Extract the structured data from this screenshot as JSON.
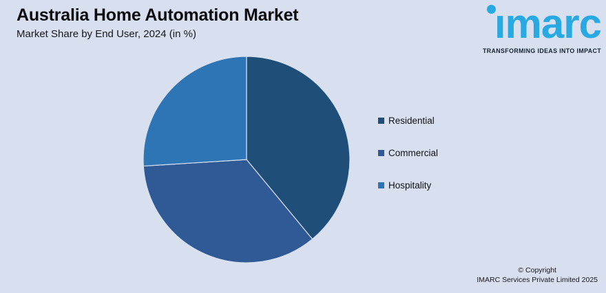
{
  "page": {
    "background": "#d8e0ef",
    "accent": "#29a9e2"
  },
  "header": {
    "title": "Australia Home Automation Market",
    "subtitle": "Market Share by End User, 2024 (in %)"
  },
  "brand": {
    "name": "imarc",
    "wordmark": "ımarc",
    "tagline": "TRANSFORMING IDEAS INTO IMPACT",
    "wordmark_color": "#29a9e2",
    "tagline_color": "#15202e"
  },
  "chart_data": {
    "type": "pie",
    "title": "Australia Home Automation Market",
    "subtitle": "Market Share by End User, 2024 (in %)",
    "unit": "%",
    "start_angle_deg": 0,
    "direction": "clockwise",
    "data_labels": false,
    "legend_position": "right",
    "series": [
      {
        "name": "Residential",
        "value": 39,
        "color": "#1F4E79"
      },
      {
        "name": "Commercial",
        "value": 35,
        "color": "#2F5A96"
      },
      {
        "name": "Hospitality",
        "value": 26,
        "color": "#2E75B6"
      }
    ],
    "separator_color": "#d8e0ef"
  },
  "footer": {
    "copyright_line1": "© Copyright",
    "copyright_line2": "IMARC Services Private Limited 2025"
  }
}
